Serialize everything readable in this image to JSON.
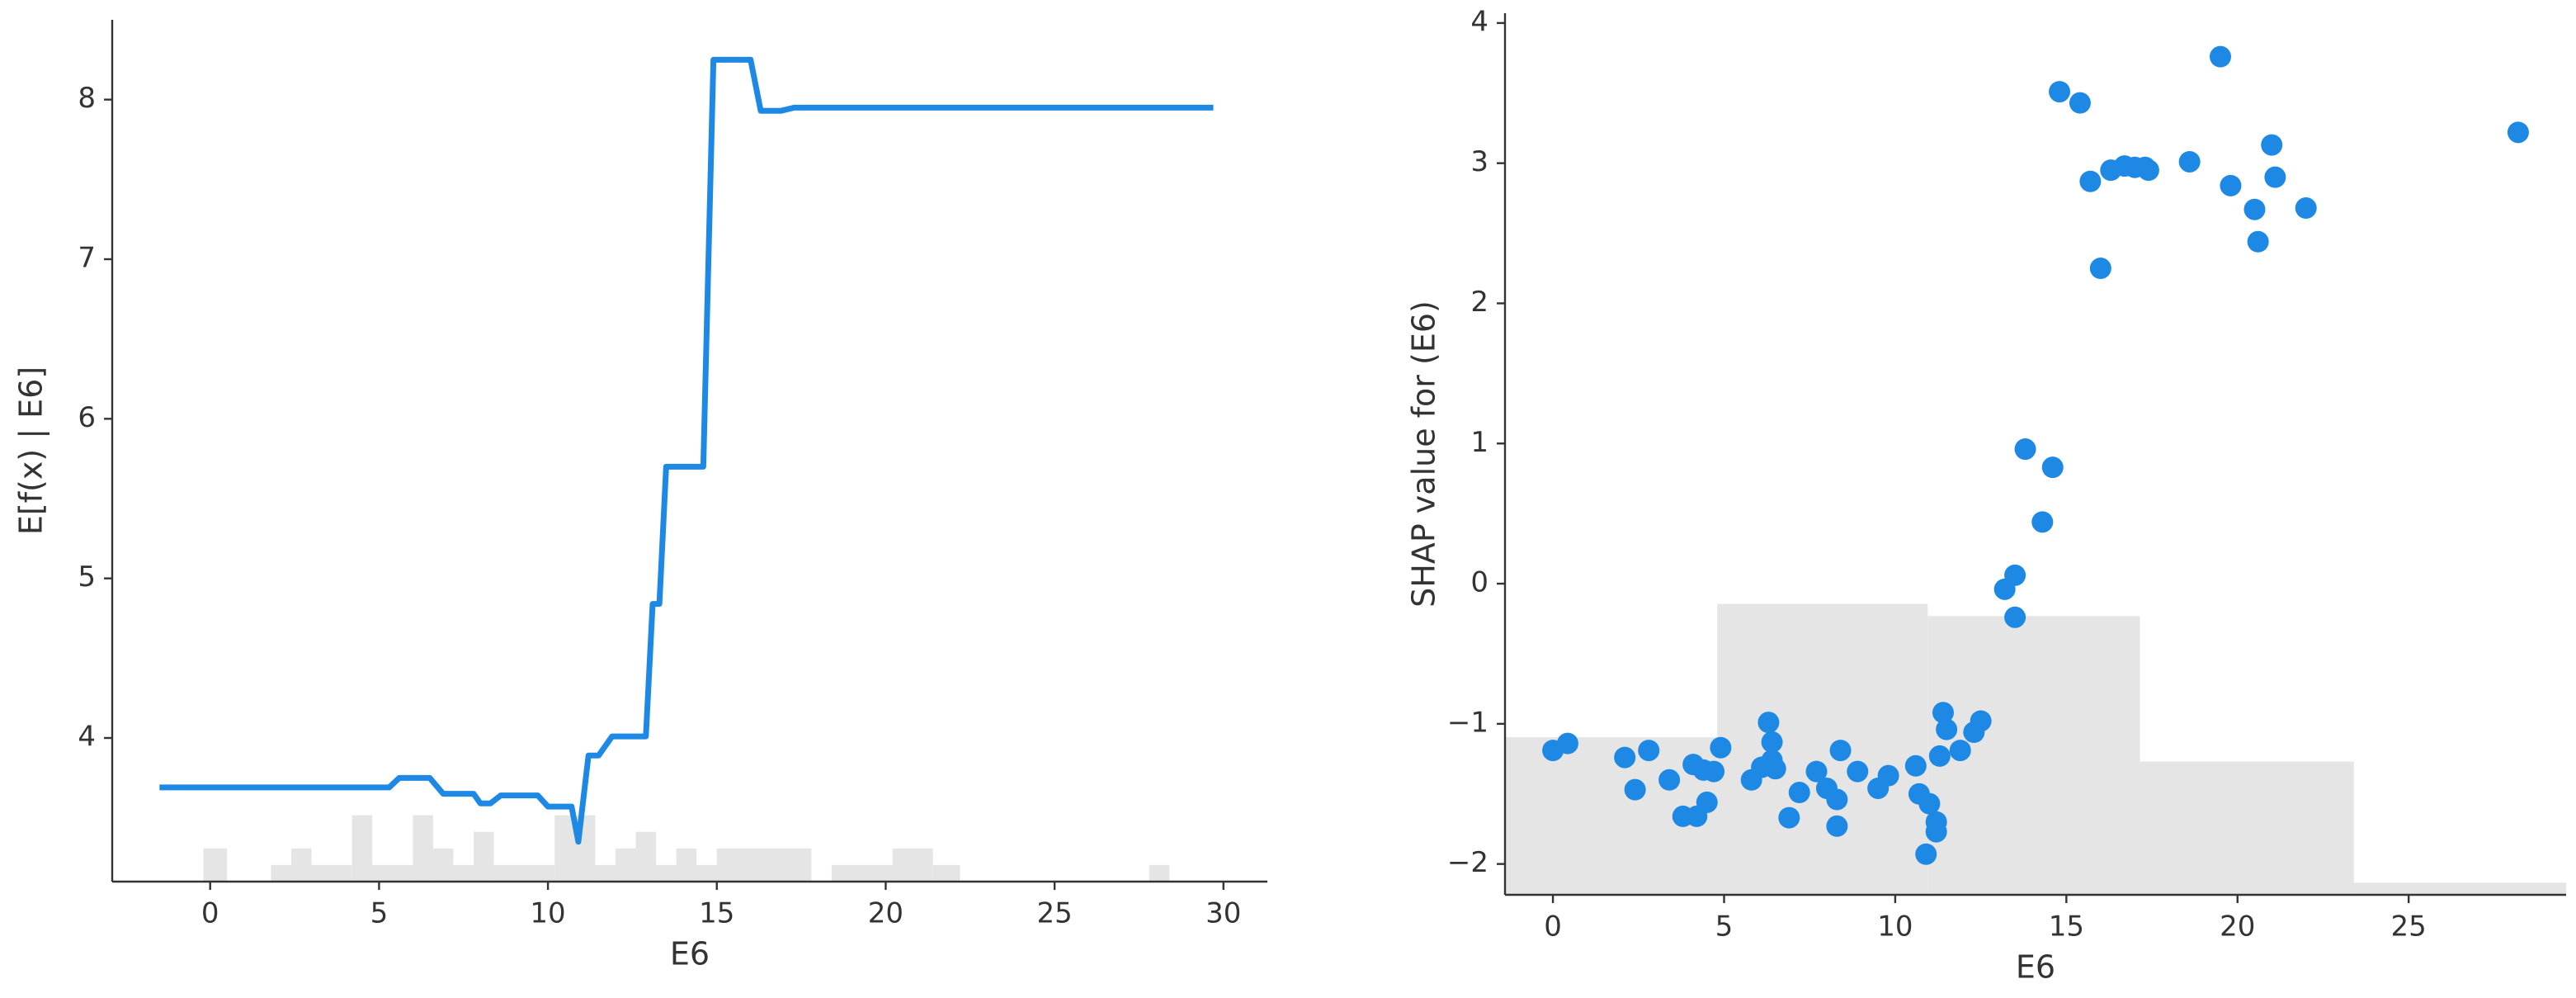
{
  "chart_data": [
    {
      "type": "line",
      "x_label": "E6",
      "y_label": "E[f(x) | E6]",
      "color": "#1e88e5",
      "x": [
        -1.5,
        5.3,
        5.6,
        6.5,
        6.9,
        7.8,
        8.0,
        8.3,
        8.6,
        9.7,
        10.0,
        10.7,
        10.9,
        11.2,
        11.5,
        11.9,
        12.9,
        13.1,
        13.3,
        13.5,
        14.6,
        14.9,
        16.0,
        16.3,
        16.9,
        17.3,
        29.7
      ],
      "values": [
        3.69,
        3.69,
        3.75,
        3.75,
        3.65,
        3.65,
        3.59,
        3.59,
        3.64,
        3.64,
        3.57,
        3.57,
        3.35,
        3.89,
        3.89,
        4.01,
        4.01,
        4.84,
        4.84,
        5.7,
        5.7,
        8.25,
        8.25,
        7.93,
        7.93,
        7.95,
        7.95
      ],
      "xlim": [
        -2.9,
        31.3
      ],
      "ylim": [
        3.1,
        8.5
      ],
      "xticks": [
        0,
        5,
        10,
        15,
        20,
        25,
        30
      ],
      "yticks": [
        4,
        5,
        6,
        7,
        8
      ],
      "histogram": {
        "color": "#e5e5e5",
        "bins": [
          -0.2,
          0.5,
          1.8,
          2.4,
          3.0,
          4.2,
          4.8,
          6.0,
          6.6,
          7.2,
          7.8,
          8.4,
          10.2,
          11.4,
          12.0,
          12.6,
          13.2,
          13.8,
          14.4,
          15.0,
          17.8,
          18.4,
          20.2,
          21.4,
          22.2,
          27.8,
          28.4
        ],
        "counts": [
          2,
          0,
          1,
          2,
          1,
          4,
          1,
          4,
          2,
          1,
          3,
          1,
          4,
          1,
          2,
          3,
          1,
          2,
          1,
          2,
          0,
          1,
          2,
          1,
          0,
          1
        ]
      }
    },
    {
      "type": "scatter",
      "x_label": "E6",
      "y_label": "SHAP value for  (E6)",
      "color": "#1e88e5",
      "x": [
        0,
        0.43,
        2.1,
        2.4,
        2.8,
        3.4,
        3.8,
        4.1,
        4.2,
        4.4,
        4.5,
        4.7,
        4.9,
        5.8,
        6.1,
        6.3,
        6.4,
        6.4,
        6.5,
        6.9,
        7.2,
        7.7,
        8.0,
        8.3,
        8.3,
        8.4,
        8.9,
        9.5,
        9.8,
        10.6,
        10.7,
        10.9,
        11.0,
        11.2,
        11.2,
        11.3,
        11.4,
        11.5,
        11.9,
        12.3,
        12.5,
        13.2,
        13.5,
        13.5,
        13.8,
        14.3,
        14.6,
        14.8,
        15.4,
        15.7,
        16.0,
        16.3,
        16.7,
        17.0,
        17.3,
        17.4,
        18.6,
        19.5,
        19.8,
        20.5,
        20.6,
        21.0,
        21.1,
        22.0,
        28.2
      ],
      "values": [
        -1.19,
        -1.14,
        -1.24,
        -1.47,
        -1.19,
        -1.4,
        -1.66,
        -1.29,
        -1.66,
        -1.33,
        -1.56,
        -1.34,
        -1.17,
        -1.4,
        -1.31,
        -0.99,
        -1.13,
        -1.26,
        -1.32,
        -1.67,
        -1.49,
        -1.34,
        -1.46,
        -1.54,
        -1.73,
        -1.19,
        -1.34,
        -1.46,
        -1.37,
        -1.3,
        -1.5,
        -1.93,
        -1.57,
        -1.7,
        -1.77,
        -1.23,
        -0.92,
        -1.04,
        -1.19,
        -1.06,
        -0.98,
        -0.04,
        0.06,
        -0.24,
        0.96,
        0.44,
        0.83,
        3.51,
        3.43,
        2.87,
        2.25,
        2.95,
        2.98,
        2.97,
        2.97,
        2.95,
        3.01,
        3.76,
        2.84,
        2.67,
        2.44,
        3.13,
        2.9,
        2.68,
        3.22
      ],
      "xlim": [
        -1.4,
        29.6
      ],
      "ylim": [
        -2.22,
        4.07
      ],
      "xticks": [
        0,
        5,
        10,
        15,
        20,
        25
      ],
      "yticks": [
        {
          "value": -2,
          "label": "−2"
        },
        {
          "value": -1,
          "label": "−1"
        },
        0,
        1,
        2,
        3,
        4
      ],
      "histogram": {
        "color": "#e5e5e5",
        "bins": [
          -1.4,
          4.8,
          10.95,
          17.15,
          23.4,
          29.6
        ],
        "counts": [
          13,
          24,
          23,
          11,
          1
        ]
      }
    }
  ]
}
